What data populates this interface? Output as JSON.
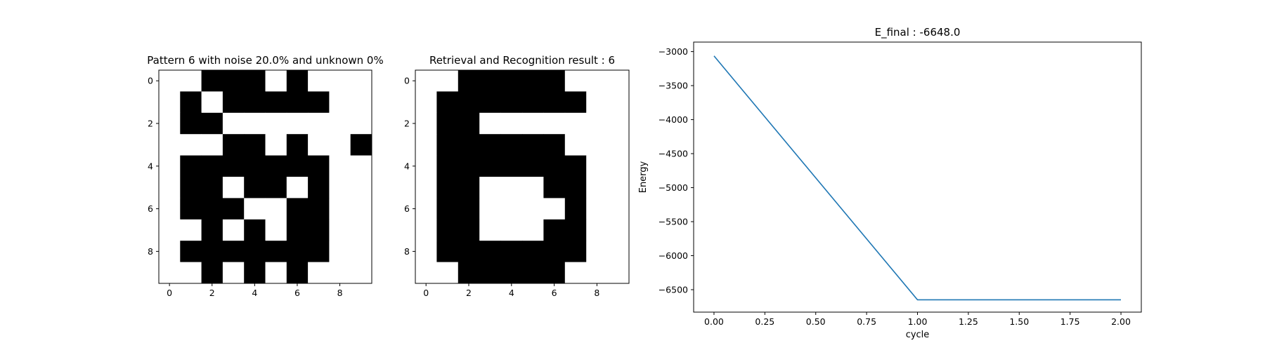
{
  "chart_data": [
    {
      "type": "heatmap",
      "title": "Pattern 6 with noise 20.0% and unknown 0%",
      "x_ticks": [
        0,
        2,
        4,
        6,
        8
      ],
      "y_ticks": [
        0,
        2,
        4,
        6,
        8
      ],
      "xlim": [
        -0.5,
        9.5
      ],
      "ylim": [
        9.5,
        -0.5
      ],
      "colormap": {
        "1": "#000000",
        "0": "#ffffff"
      },
      "grid": [
        [
          0,
          0,
          1,
          1,
          1,
          0,
          1,
          0,
          0,
          0
        ],
        [
          0,
          1,
          0,
          1,
          1,
          1,
          1,
          1,
          0,
          0
        ],
        [
          0,
          1,
          1,
          0,
          0,
          0,
          0,
          0,
          0,
          0
        ],
        [
          0,
          0,
          0,
          1,
          1,
          0,
          1,
          0,
          0,
          1
        ],
        [
          0,
          1,
          1,
          1,
          1,
          1,
          1,
          1,
          0,
          0
        ],
        [
          0,
          1,
          1,
          0,
          1,
          1,
          0,
          1,
          0,
          0
        ],
        [
          0,
          1,
          1,
          1,
          0,
          0,
          1,
          1,
          0,
          0
        ],
        [
          0,
          0,
          1,
          0,
          1,
          0,
          1,
          1,
          0,
          0
        ],
        [
          0,
          1,
          1,
          1,
          1,
          1,
          1,
          1,
          0,
          0
        ],
        [
          0,
          0,
          1,
          0,
          1,
          0,
          1,
          0,
          0,
          0
        ]
      ]
    },
    {
      "type": "heatmap",
      "title": "Retrieval and Recognition result : 6",
      "x_ticks": [
        0,
        2,
        4,
        6,
        8
      ],
      "y_ticks": [
        0,
        2,
        4,
        6,
        8
      ],
      "xlim": [
        -0.5,
        9.5
      ],
      "ylim": [
        9.5,
        -0.5
      ],
      "colormap": {
        "1": "#000000",
        "0": "#ffffff"
      },
      "grid": [
        [
          0,
          0,
          1,
          1,
          1,
          1,
          1,
          0,
          0,
          0
        ],
        [
          0,
          1,
          1,
          1,
          1,
          1,
          1,
          1,
          0,
          0
        ],
        [
          0,
          1,
          1,
          0,
          0,
          0,
          0,
          0,
          0,
          0
        ],
        [
          0,
          1,
          1,
          1,
          1,
          1,
          1,
          0,
          0,
          0
        ],
        [
          0,
          1,
          1,
          1,
          1,
          1,
          1,
          1,
          0,
          0
        ],
        [
          0,
          1,
          1,
          0,
          0,
          0,
          1,
          1,
          0,
          0
        ],
        [
          0,
          1,
          1,
          0,
          0,
          0,
          0,
          1,
          0,
          0
        ],
        [
          0,
          1,
          1,
          0,
          0,
          0,
          1,
          1,
          0,
          0
        ],
        [
          0,
          1,
          1,
          1,
          1,
          1,
          1,
          1,
          0,
          0
        ],
        [
          0,
          0,
          1,
          1,
          1,
          1,
          1,
          0,
          0,
          0
        ]
      ]
    },
    {
      "type": "line",
      "title": "E_final : -6648.0",
      "xlabel": "cycle",
      "ylabel": "Energy",
      "xlim": [
        -0.1,
        2.1
      ],
      "ylim": [
        -6830,
        -2860
      ],
      "x_ticks": [
        0.0,
        0.25,
        0.5,
        0.75,
        1.0,
        1.25,
        1.5,
        1.75,
        2.0
      ],
      "x_tick_labels": [
        "0.00",
        "0.25",
        "0.50",
        "0.75",
        "1.00",
        "1.25",
        "1.50",
        "1.75",
        "2.00"
      ],
      "y_ticks": [
        -3000,
        -3500,
        -4000,
        -4500,
        -5000,
        -5500,
        -6000,
        -6500
      ],
      "y_tick_labels": [
        "−3000",
        "−3500",
        "−4000",
        "−4500",
        "−5000",
        "−5500",
        "−6000",
        "−6500"
      ],
      "line_color": "#1f77b4",
      "series": [
        {
          "x": [
            0,
            1,
            2
          ],
          "values": [
            -3064,
            -6648,
            -6648
          ]
        }
      ]
    }
  ]
}
